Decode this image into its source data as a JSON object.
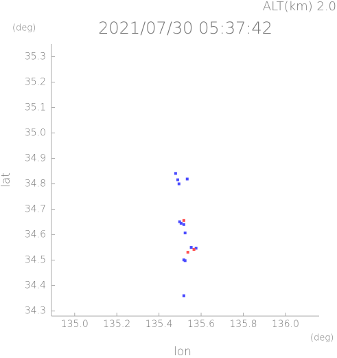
{
  "chart_data": {
    "type": "scatter",
    "title": "2021/07/30 05:37:42",
    "subtitle": "ALT(km) 2.0",
    "y_unit": "(deg)",
    "x_unit": "(deg)",
    "x_label": "lon",
    "y_label": "lat",
    "xlim": [
      134.89,
      136.16
    ],
    "ylim": [
      34.28,
      35.35
    ],
    "xticks": [
      {
        "value": 135.0,
        "label": "135.0"
      },
      135.2,
      135.4,
      135.6,
      135.8,
      {
        "value": 136.0,
        "label": "136.0"
      }
    ],
    "yticks": [
      35.3,
      35.2,
      35.1,
      {
        "value": 35.0,
        "label": "35.0"
      },
      34.9,
      34.8,
      34.7,
      34.6,
      34.5,
      34.4,
      34.3
    ],
    "series": [
      {
        "color": "#4a4aff",
        "x": [
          135.479,
          135.489,
          135.495,
          135.534,
          135.498,
          135.505,
          135.518,
          135.524,
          135.553,
          135.576,
          135.518,
          135.524,
          135.518
        ],
        "y": [
          34.841,
          34.816,
          34.8,
          34.819,
          34.651,
          34.645,
          34.64,
          34.607,
          34.55,
          34.547,
          34.501,
          34.498,
          34.36
        ]
      },
      {
        "color": "#ff5050",
        "x": [
          135.518,
          135.566,
          135.537
        ],
        "y": [
          34.656,
          34.542,
          34.531
        ]
      }
    ]
  }
}
